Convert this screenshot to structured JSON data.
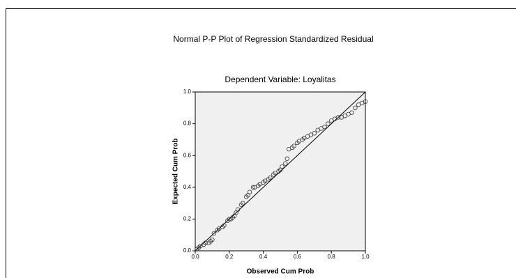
{
  "chart_data": {
    "type": "scatter",
    "title": "Normal P-P Plot of Regression Standardized Residual",
    "subtitle": "Dependent Variable: Loyalitas",
    "x_label": "Observed Cum Prob",
    "y_label": "Expected Cum Prob",
    "x": [
      0.01,
      0.02,
      0.03,
      0.05,
      0.06,
      0.08,
      0.09,
      0.1,
      0.11,
      0.13,
      0.14,
      0.16,
      0.17,
      0.19,
      0.2,
      0.21,
      0.22,
      0.23,
      0.24,
      0.25,
      0.27,
      0.28,
      0.3,
      0.31,
      0.32,
      0.34,
      0.35,
      0.37,
      0.38,
      0.4,
      0.41,
      0.43,
      0.44,
      0.46,
      0.47,
      0.49,
      0.5,
      0.51,
      0.53,
      0.54,
      0.55,
      0.57,
      0.58,
      0.6,
      0.61,
      0.63,
      0.64,
      0.66,
      0.68,
      0.7,
      0.72,
      0.74,
      0.76,
      0.78,
      0.8,
      0.82,
      0.84,
      0.86,
      0.88,
      0.9,
      0.92,
      0.94,
      0.96,
      0.98,
      1.0
    ],
    "values": [
      0.01,
      0.02,
      0.03,
      0.04,
      0.05,
      0.05,
      0.06,
      0.07,
      0.11,
      0.13,
      0.14,
      0.15,
      0.16,
      0.19,
      0.2,
      0.2,
      0.21,
      0.22,
      0.24,
      0.26,
      0.29,
      0.3,
      0.34,
      0.35,
      0.37,
      0.4,
      0.4,
      0.41,
      0.42,
      0.43,
      0.44,
      0.45,
      0.46,
      0.48,
      0.49,
      0.5,
      0.51,
      0.53,
      0.55,
      0.58,
      0.64,
      0.65,
      0.66,
      0.68,
      0.69,
      0.7,
      0.71,
      0.72,
      0.73,
      0.74,
      0.76,
      0.77,
      0.78,
      0.8,
      0.82,
      0.83,
      0.84,
      0.84,
      0.85,
      0.86,
      0.87,
      0.9,
      0.92,
      0.93,
      0.94
    ],
    "xlim": [
      0,
      1
    ],
    "ylim": [
      0,
      1
    ],
    "xticks": [
      {
        "value": 0,
        "label": "0.0"
      },
      0.2,
      0.4,
      0.6,
      0.8,
      {
        "value": 1,
        "label": "1.0"
      }
    ],
    "yticks": [
      {
        "value": 0,
        "label": "0.0"
      },
      0.2,
      0.4,
      0.6,
      0.8,
      {
        "value": 1,
        "label": "1.0"
      }
    ],
    "color": "#333333"
  }
}
